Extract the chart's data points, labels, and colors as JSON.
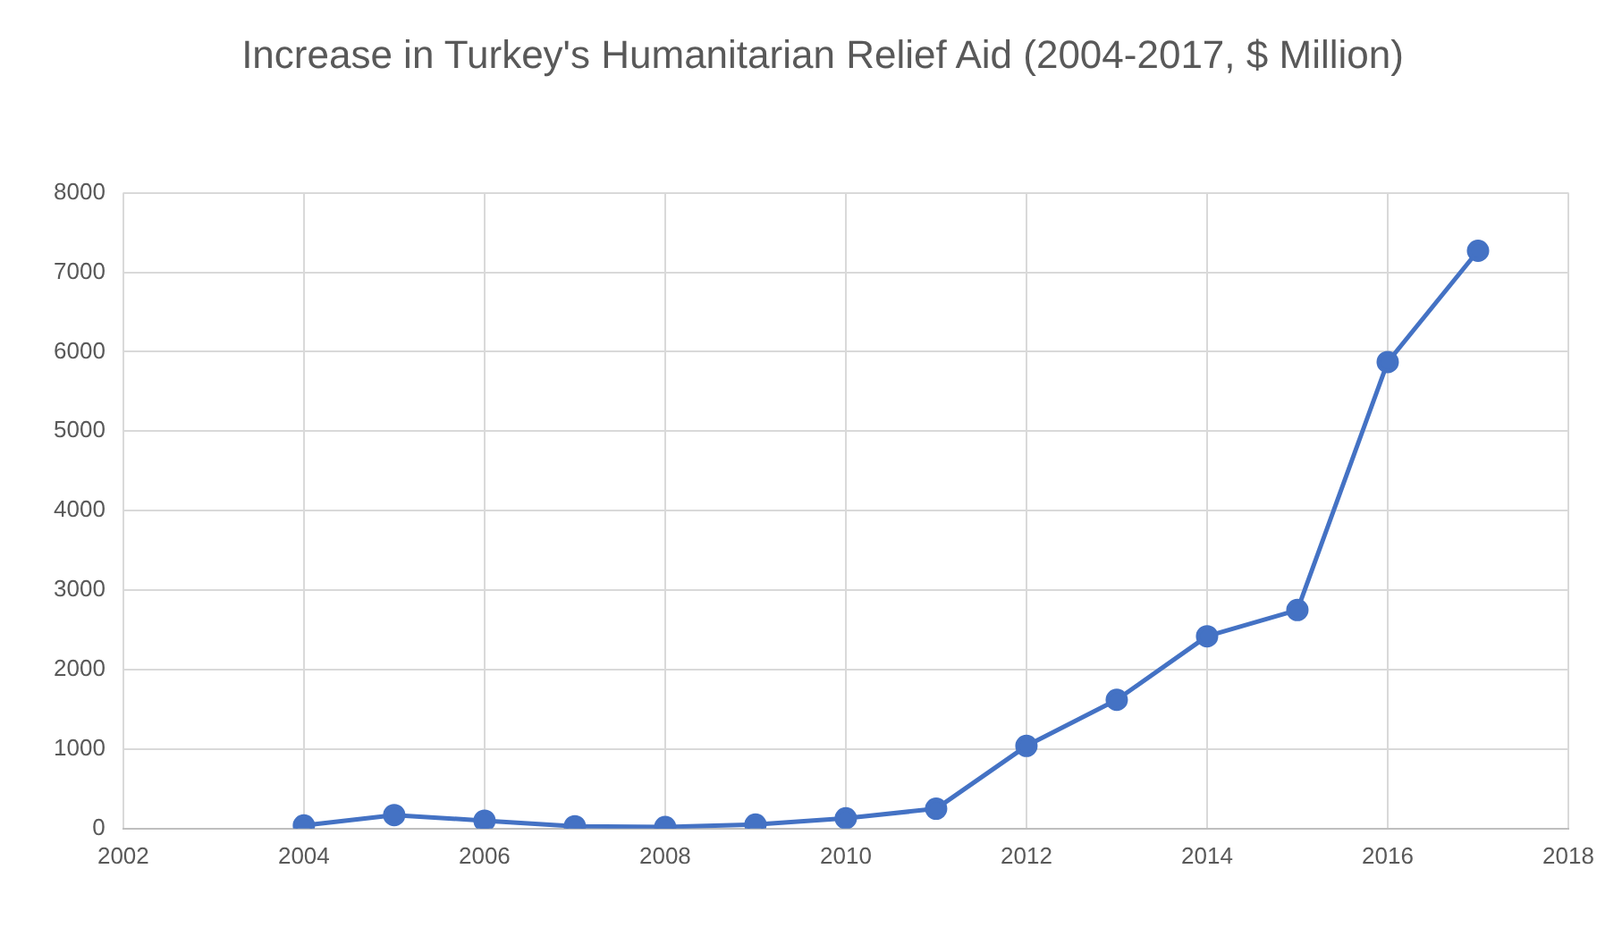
{
  "chart_data": {
    "type": "line",
    "title": "Increase in Turkey's Humanitarian Relief Aid (2004-2017, $ Million)",
    "x": [
      2004,
      2005,
      2006,
      2007,
      2008,
      2009,
      2010,
      2011,
      2012,
      2013,
      2014,
      2015,
      2016,
      2017
    ],
    "series": [
      {
        "color": "#4472c4",
        "values": [
          40,
          170,
          100,
          30,
          20,
          50,
          130,
          250,
          1040,
          1620,
          2420,
          2750,
          5870,
          7270
        ]
      }
    ],
    "xlim": [
      2002,
      2018
    ],
    "xticks": [
      2002,
      2004,
      2006,
      2008,
      2010,
      2012,
      2014,
      2016,
      2018
    ],
    "ylim": [
      0,
      8000
    ],
    "yticks": [
      0,
      1000,
      2000,
      3000,
      4000,
      5000,
      6000,
      7000,
      8000
    ],
    "grid": true,
    "legend": false,
    "marker": "circle",
    "line_style": "solid"
  }
}
